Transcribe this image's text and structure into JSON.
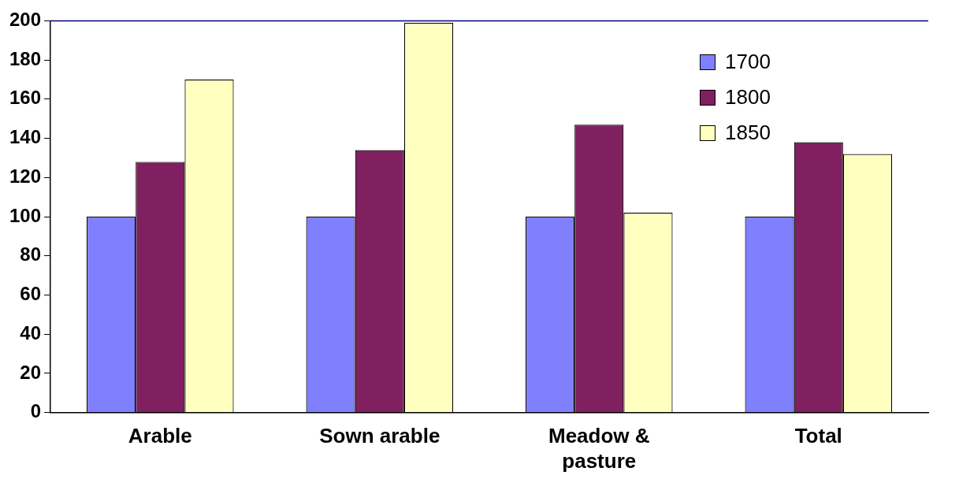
{
  "chart_data": {
    "type": "bar",
    "categories": [
      "Arable",
      "Sown arable",
      "Meadow & pasture",
      "Total"
    ],
    "series": [
      {
        "name": "1700",
        "color": "#8080ff",
        "values": [
          100,
          100,
          100,
          100
        ]
      },
      {
        "name": "1800",
        "color": "#802060",
        "values": [
          128,
          134,
          147,
          138
        ]
      },
      {
        "name": "1850",
        "color": "#ffffc0",
        "values": [
          170,
          199,
          102,
          132
        ]
      }
    ],
    "ylim": [
      0,
      200
    ],
    "yticks": [
      0,
      20,
      40,
      60,
      80,
      100,
      120,
      140,
      160,
      180,
      200
    ],
    "grid": false,
    "legend": "top right"
  }
}
